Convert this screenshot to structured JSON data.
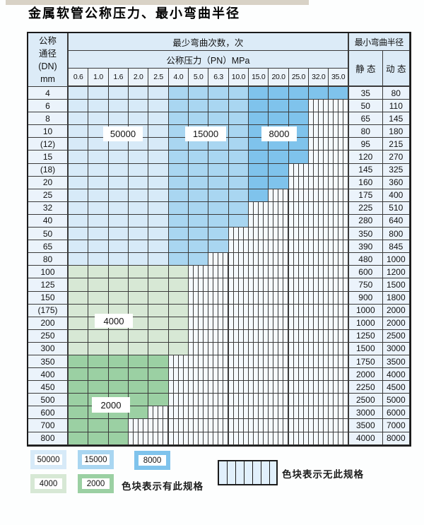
{
  "title": "金属软管公称压力、最小弯曲半径",
  "table": {
    "header": {
      "dn_lines": [
        "公称",
        "通径",
        "(DN)",
        "mm"
      ],
      "bend_cycles": "最少弯曲次数，次",
      "pressure": "公称压力（PN）MPa",
      "min_radius": "最小弯曲半径",
      "static_label": "静 态",
      "dynamic_label": "动 态",
      "pressures": [
        "0.6",
        "1.0",
        "1.6",
        "2.0",
        "2.5",
        "4.0",
        "5.0",
        "6.3",
        "10.0",
        "15.0",
        "20.0",
        "25.0",
        "32.0",
        "35.0"
      ]
    },
    "rows": [
      {
        "dn": "4",
        "static": "35",
        "dynamic": "80",
        "colored": 14,
        "palette": "blue"
      },
      {
        "dn": "6",
        "static": "50",
        "dynamic": "110",
        "colored": 12,
        "palette": "blue"
      },
      {
        "dn": "8",
        "static": "65",
        "dynamic": "145",
        "colored": 12,
        "palette": "blue"
      },
      {
        "dn": "10",
        "static": "80",
        "dynamic": "180",
        "colored": 12,
        "palette": "blue"
      },
      {
        "dn": "(12)",
        "static": "95",
        "dynamic": "215",
        "colored": 12,
        "palette": "blue"
      },
      {
        "dn": "15",
        "static": "120",
        "dynamic": "270",
        "colored": 12,
        "palette": "blue"
      },
      {
        "dn": "(18)",
        "static": "145",
        "dynamic": "325",
        "colored": 11,
        "palette": "blue"
      },
      {
        "dn": "20",
        "static": "160",
        "dynamic": "360",
        "colored": 11,
        "palette": "blue"
      },
      {
        "dn": "25",
        "static": "175",
        "dynamic": "400",
        "colored": 10,
        "palette": "blue"
      },
      {
        "dn": "32",
        "static": "225",
        "dynamic": "510",
        "colored": 9,
        "palette": "blue"
      },
      {
        "dn": "40",
        "static": "280",
        "dynamic": "640",
        "colored": 9,
        "palette": "blue"
      },
      {
        "dn": "50",
        "static": "350",
        "dynamic": "800",
        "colored": 8,
        "palette": "blue"
      },
      {
        "dn": "65",
        "static": "390",
        "dynamic": "845",
        "colored": 8,
        "palette": "blue"
      },
      {
        "dn": "80",
        "static": "480",
        "dynamic": "1000",
        "colored": 7,
        "palette": "blue"
      },
      {
        "dn": "100",
        "static": "600",
        "dynamic": "1200",
        "colored": 6,
        "palette": "c4000"
      },
      {
        "dn": "125",
        "static": "750",
        "dynamic": "1500",
        "colored": 6,
        "palette": "c4000"
      },
      {
        "dn": "150",
        "static": "900",
        "dynamic": "1800",
        "colored": 6,
        "palette": "c4000"
      },
      {
        "dn": "(175)",
        "static": "1000",
        "dynamic": "2000",
        "colored": 6,
        "palette": "c4000"
      },
      {
        "dn": "200",
        "static": "1000",
        "dynamic": "2000",
        "colored": 6,
        "palette": "c4000"
      },
      {
        "dn": "250",
        "static": "1250",
        "dynamic": "2500",
        "colored": 6,
        "palette": "c4000"
      },
      {
        "dn": "300",
        "static": "1500",
        "dynamic": "3000",
        "colored": 6,
        "palette": "c4000"
      },
      {
        "dn": "350",
        "static": "1750",
        "dynamic": "3500",
        "colored": 5,
        "palette": "c2000"
      },
      {
        "dn": "400",
        "static": "2000",
        "dynamic": "4000",
        "colored": 5,
        "palette": "c2000"
      },
      {
        "dn": "450",
        "static": "2250",
        "dynamic": "4500",
        "colored": 5,
        "palette": "c2000"
      },
      {
        "dn": "500",
        "static": "2500",
        "dynamic": "5000",
        "colored": 5,
        "palette": "c2000"
      },
      {
        "dn": "600",
        "static": "3000",
        "dynamic": "6000",
        "colored": 4,
        "palette": "c2000"
      },
      {
        "dn": "700",
        "static": "3500",
        "dynamic": "7000",
        "colored": 3,
        "palette": "c2000"
      },
      {
        "dn": "800",
        "static": "4000",
        "dynamic": "8000",
        "colored": 3,
        "palette": "c2000"
      }
    ]
  },
  "overlays": {
    "o50000": "50000",
    "o15000": "15000",
    "o8000": "8000",
    "o4000": "4000",
    "o2000": "2000"
  },
  "legend": {
    "items": [
      {
        "label": "50000",
        "color_key": "c50000"
      },
      {
        "label": "15000",
        "color_key": "c15000"
      },
      {
        "label": "8000",
        "color_key": "c8000"
      },
      {
        "label": "4000",
        "color_key": "c4000"
      },
      {
        "label": "2000",
        "color_key": "c2000"
      }
    ],
    "has_spec": "色块表示有此规格",
    "no_spec": "色块表示无此规格"
  },
  "colors": {
    "c50000": "#d7eaf8",
    "c15000": "#a9d6f1",
    "c8000": "#7fc3ec",
    "c4000": "#d7e8d5",
    "c2000": "#9bd0a3",
    "header_bg": "#dcebf7",
    "pale_bg": "#ebf3fb",
    "grid": "#3a3a3a",
    "hatch_bg": "#f5fafd",
    "page_bg": "#fdfefe",
    "top_strip": "#d8d2c6"
  }
}
